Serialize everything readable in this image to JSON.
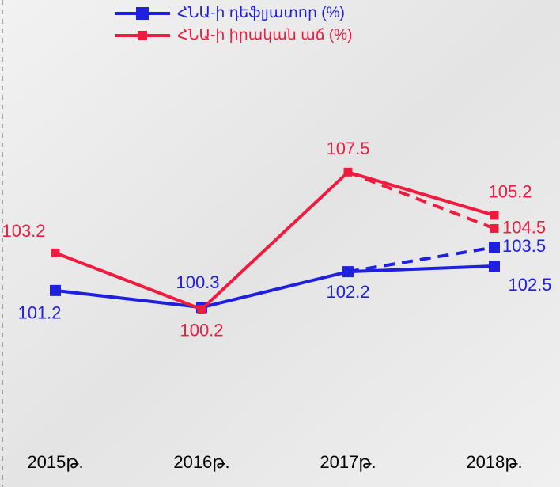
{
  "chart_data": {
    "type": "line",
    "categories": [
      "2015թ.",
      "2016թ.",
      "2017թ.",
      "2018թ."
    ],
    "series": [
      {
        "name": "ՀՆԱ-ի դեֆլյատոր (%)",
        "color": "#1f1fe0",
        "values": [
          101.2,
          100.3,
          102.2,
          102.5
        ]
      },
      {
        "name": "ՀՆԱ-ի իրական աճ (%)",
        "color": "#ee1c3f",
        "values": [
          103.2,
          100.2,
          107.5,
          105.2
        ]
      },
      {
        "color": "#1f1fe0",
        "dashed": true,
        "values": [
          null,
          null,
          102.2,
          103.5
        ]
      },
      {
        "color": "#ee1c3f",
        "dashed": true,
        "values": [
          null,
          null,
          107.5,
          104.5
        ]
      }
    ],
    "ylim": [
      95,
      110
    ]
  }
}
